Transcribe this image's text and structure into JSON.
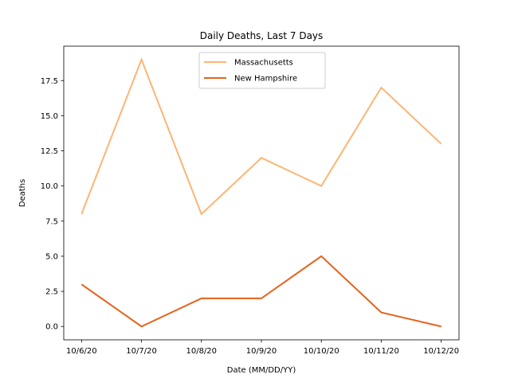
{
  "chart_data": {
    "type": "line",
    "title": "Daily Deaths, Last 7 Days",
    "xlabel": "Date (MM/DD/YY)",
    "ylabel": "Deaths",
    "categories": [
      "10/6/20",
      "10/7/20",
      "10/8/20",
      "10/9/20",
      "10/10/20",
      "10/11/20",
      "10/12/20"
    ],
    "series": [
      {
        "name": "Massachusetts",
        "color": "#fdb574",
        "values": [
          8,
          19,
          8,
          12,
          10,
          17,
          13
        ]
      },
      {
        "name": "New Hampshire",
        "color": "#e6621a",
        "values": [
          3,
          0,
          2,
          2,
          5,
          1,
          0
        ]
      }
    ],
    "ylim": [
      -0.95,
      19.95
    ],
    "yticks": [
      0.0,
      2.5,
      5.0,
      7.5,
      10.0,
      12.5,
      15.0,
      17.5
    ],
    "ytick_labels": [
      "0.0",
      "2.5",
      "5.0",
      "7.5",
      "10.0",
      "12.5",
      "15.0",
      "17.5"
    ],
    "legend_position": "upper-center",
    "grid": false
  }
}
